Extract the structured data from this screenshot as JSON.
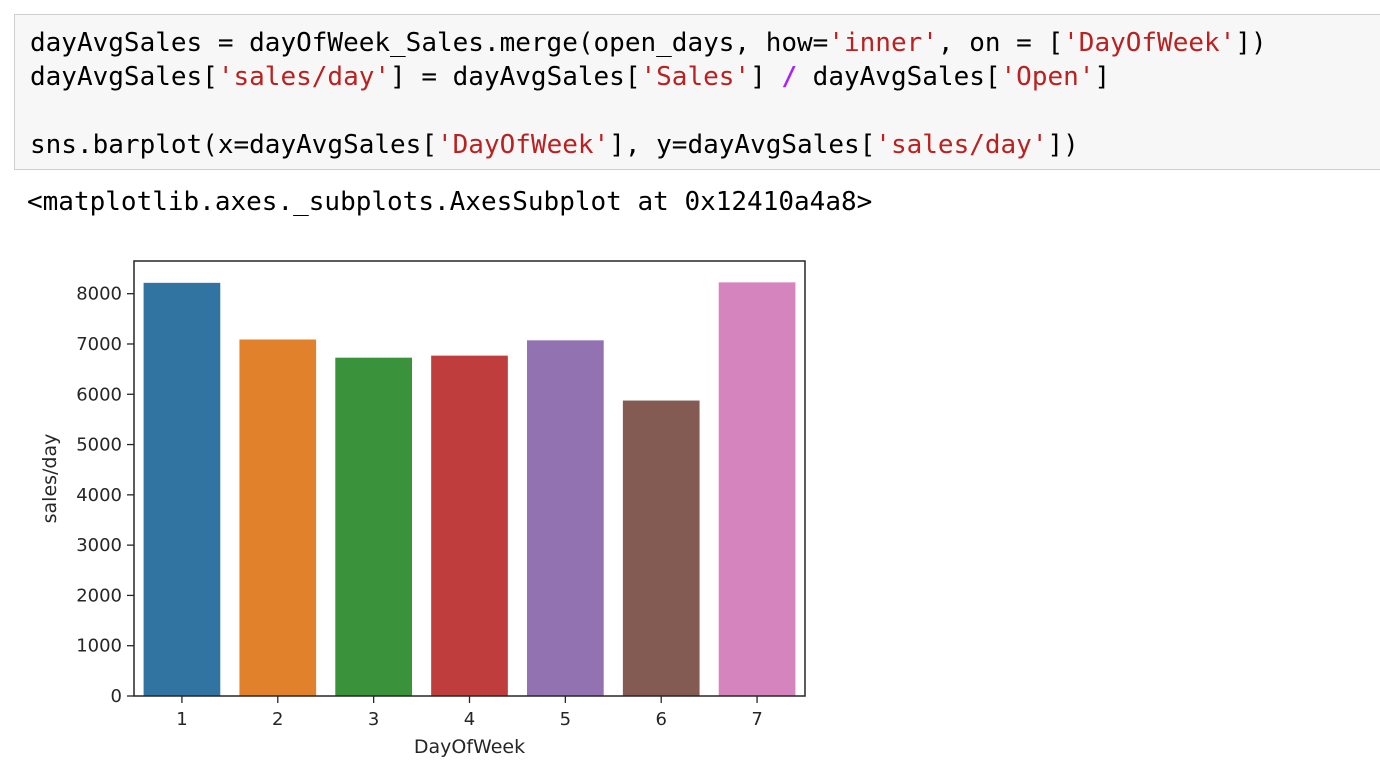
{
  "code_cell": {
    "lines": [
      [
        {
          "t": "dayAvgSales = dayOfWeek_Sales.merge(open_days, how=",
          "c": "plain"
        },
        {
          "t": "'inner'",
          "c": "str"
        },
        {
          "t": ", on = [",
          "c": "plain"
        },
        {
          "t": "'DayOfWeek'",
          "c": "str"
        },
        {
          "t": "])",
          "c": "plain"
        }
      ],
      [
        {
          "t": "dayAvgSales[",
          "c": "plain"
        },
        {
          "t": "'sales/day'",
          "c": "str"
        },
        {
          "t": "] = dayAvgSales[",
          "c": "plain"
        },
        {
          "t": "'Sales'",
          "c": "str"
        },
        {
          "t": "] ",
          "c": "plain"
        },
        {
          "t": "/",
          "c": "op"
        },
        {
          "t": " dayAvgSales[",
          "c": "plain"
        },
        {
          "t": "'Open'",
          "c": "str"
        },
        {
          "t": "]",
          "c": "plain"
        }
      ],
      [],
      [
        {
          "t": "sns.barplot(x=dayAvgSales[",
          "c": "plain"
        },
        {
          "t": "'DayOfWeek'",
          "c": "str"
        },
        {
          "t": "], y=dayAvgSales[",
          "c": "plain"
        },
        {
          "t": "'sales/day'",
          "c": "str"
        },
        {
          "t": "])",
          "c": "plain"
        }
      ]
    ]
  },
  "output": {
    "text": "<matplotlib.axes._subplots.AxesSubplot at 0x12410a4a8>"
  },
  "chart_data": {
    "type": "bar",
    "categories": [
      "1",
      "2",
      "3",
      "4",
      "5",
      "6",
      "7"
    ],
    "values": [
      8216,
      7089,
      6728,
      6768,
      7073,
      5875,
      8225
    ],
    "colors": [
      "#3274a1",
      "#e1812c",
      "#3a923a",
      "#c03d3e",
      "#9372b2",
      "#845b53",
      "#d684bd"
    ],
    "title": "",
    "xlabel": "DayOfWeek",
    "ylabel": "sales/day",
    "ylim": [
      0,
      8650
    ],
    "yticks": [
      0,
      1000,
      2000,
      3000,
      4000,
      5000,
      6000,
      7000,
      8000
    ],
    "grid": false
  }
}
